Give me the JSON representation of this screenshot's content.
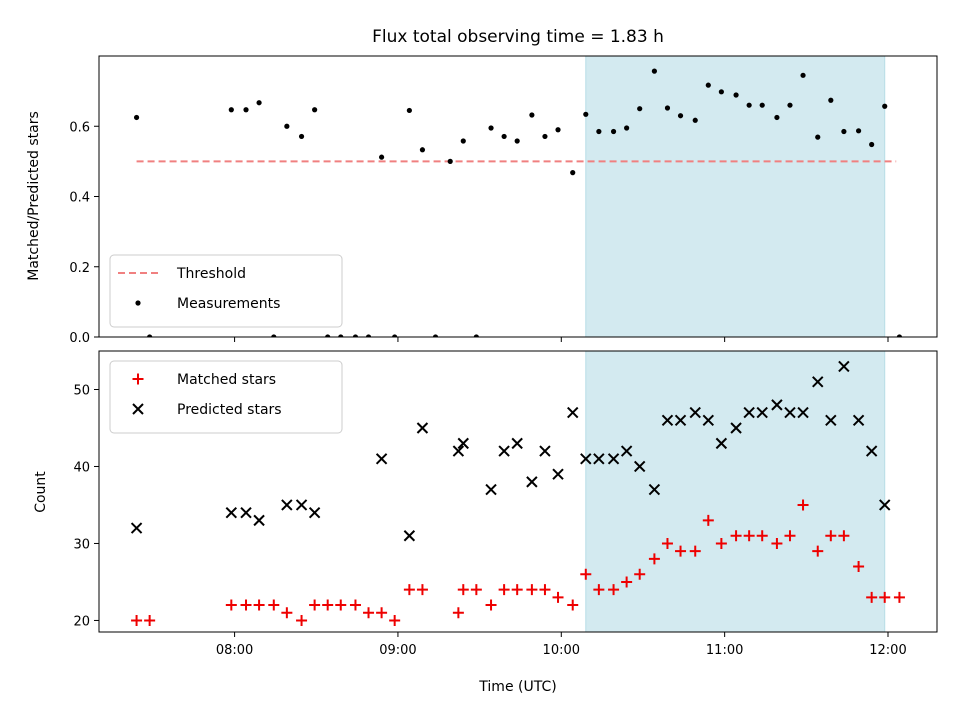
{
  "chart_data": {
    "title": "Flux total observing time = 1.83 h",
    "xlabel": "Time (UTC)",
    "x_unit": "hours UTC",
    "xlim": [
      7.17,
      12.3
    ],
    "xticks": [
      8,
      9,
      10,
      11,
      12
    ],
    "xtick_labels": [
      "08:00",
      "09:00",
      "10:00",
      "11:00",
      "12:00"
    ],
    "shaded_span": [
      10.15,
      11.98
    ],
    "shaded_color": "#d3eaf0",
    "panels": [
      {
        "type": "scatter",
        "ylabel": "Matched/Predicted stars",
        "ylim": [
          0,
          0.8
        ],
        "yticks": [
          0.0,
          0.2,
          0.4,
          0.6
        ],
        "ytick_labels": [
          "0.0",
          "0.2",
          "0.4",
          "0.6"
        ],
        "legend_position": "lower-left",
        "threshold": {
          "name": "Threshold",
          "value": 0.5,
          "x_range": [
            7.4,
            12.05
          ],
          "color": "#f08080"
        },
        "series": [
          {
            "name": "Measurements",
            "marker": "dot",
            "color": "#000000",
            "x": [
              7.4,
              7.48,
              7.98,
              8.07,
              8.15,
              8.24,
              8.32,
              8.41,
              8.49,
              8.57,
              8.65,
              8.74,
              8.82,
              8.9,
              8.98,
              9.07,
              9.15,
              9.23,
              9.32,
              9.4,
              9.48,
              9.57,
              9.65,
              9.73,
              9.82,
              9.9,
              9.98,
              10.07,
              10.15,
              10.23,
              10.32,
              10.4,
              10.48,
              10.57,
              10.65,
              10.73,
              10.82,
              10.9,
              10.98,
              11.07,
              11.15,
              11.23,
              11.32,
              11.4,
              11.48,
              11.57,
              11.65,
              11.73,
              11.82,
              11.9,
              11.98,
              12.07
            ],
            "y": [
              0.625,
              0.0,
              0.647,
              0.647,
              0.667,
              0.0,
              0.6,
              0.571,
              0.647,
              0.0,
              0.0,
              0.0,
              0.0,
              0.512,
              0.0,
              0.645,
              0.533,
              0.0,
              0.5,
              0.558,
              0.0,
              0.595,
              0.571,
              0.558,
              0.632,
              0.571,
              0.59,
              0.468,
              0.634,
              0.585,
              0.585,
              0.595,
              0.65,
              0.757,
              0.652,
              0.63,
              0.617,
              0.717,
              0.698,
              0.689,
              0.66,
              0.66,
              0.625,
              0.66,
              0.745,
              0.569,
              0.674,
              0.585,
              0.587,
              0.548,
              0.657,
              0.0
            ]
          }
        ]
      },
      {
        "type": "scatter",
        "ylabel": "Count",
        "ylim": [
          18.5,
          55
        ],
        "yticks": [
          20,
          30,
          40,
          50
        ],
        "ytick_labels": [
          "20",
          "30",
          "40",
          "50"
        ],
        "legend_position": "upper-left",
        "series": [
          {
            "name": "Matched stars",
            "marker": "plus",
            "color": "#ee0000",
            "x": [
              7.4,
              7.48,
              7.98,
              8.07,
              8.15,
              8.24,
              8.32,
              8.41,
              8.49,
              8.57,
              8.65,
              8.74,
              8.82,
              8.9,
              8.98,
              9.07,
              9.15,
              9.37,
              9.4,
              9.48,
              9.57,
              9.65,
              9.73,
              9.82,
              9.9,
              9.98,
              10.07,
              10.15,
              10.23,
              10.32,
              10.4,
              10.48,
              10.57,
              10.65,
              10.73,
              10.82,
              10.9,
              10.98,
              11.07,
              11.15,
              11.23,
              11.32,
              11.4,
              11.48,
              11.57,
              11.65,
              11.73,
              11.82,
              11.9,
              11.98,
              12.07
            ],
            "y": [
              20,
              20,
              22,
              22,
              22,
              22,
              21,
              20,
              22,
              22,
              22,
              22,
              21,
              21,
              20,
              24,
              24,
              21,
              24,
              24,
              22,
              24,
              24,
              24,
              24,
              23,
              22,
              26,
              24,
              24,
              25,
              26,
              28,
              30,
              29,
              29,
              33,
              30,
              31,
              31,
              31,
              30,
              31,
              35,
              29,
              31,
              31,
              27,
              23,
              23,
              23
            ]
          },
          {
            "name": "Predicted stars",
            "marker": "x",
            "color": "#000000",
            "x": [
              7.4,
              7.98,
              8.07,
              8.15,
              8.32,
              8.41,
              8.49,
              8.9,
              9.07,
              9.15,
              9.37,
              9.4,
              9.57,
              9.65,
              9.73,
              9.82,
              9.9,
              9.98,
              10.07,
              10.15,
              10.23,
              10.32,
              10.4,
              10.48,
              10.57,
              10.65,
              10.73,
              10.82,
              10.9,
              10.98,
              11.07,
              11.15,
              11.23,
              11.32,
              11.4,
              11.48,
              11.57,
              11.65,
              11.73,
              11.82,
              11.9,
              11.98
            ],
            "y": [
              32,
              34,
              34,
              33,
              35,
              35,
              34,
              41,
              31,
              45,
              42,
              43,
              37,
              42,
              43,
              38,
              42,
              39,
              47,
              41,
              41,
              41,
              42,
              40,
              37,
              46,
              46,
              47,
              46,
              43,
              45,
              47,
              47,
              48,
              47,
              47,
              51,
              46,
              53,
              46,
              42,
              35
            ]
          }
        ]
      }
    ]
  }
}
